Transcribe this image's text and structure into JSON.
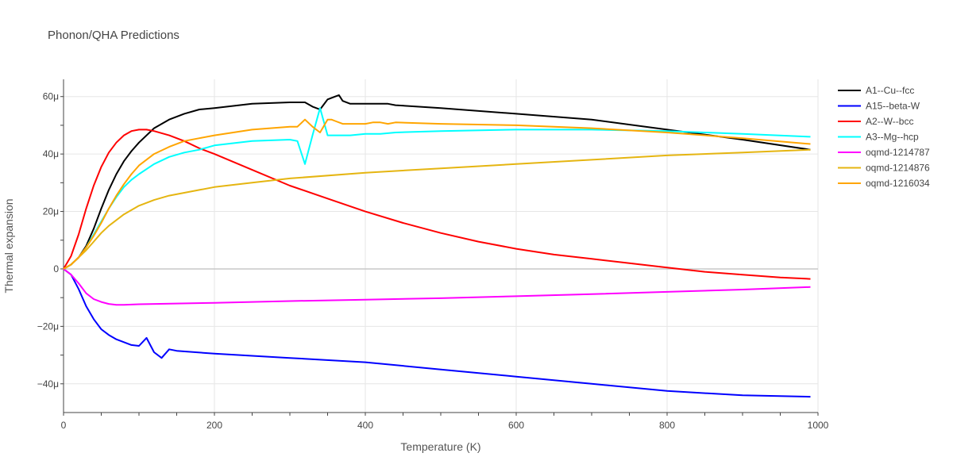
{
  "chart_data": {
    "type": "line",
    "title": "Phonon/QHA Predictions",
    "xlabel": "Temperature (K)",
    "ylabel": "Thermal expansion",
    "xlim": [
      0,
      1000
    ],
    "ylim": [
      -50,
      66
    ],
    "y_unit_suffix": "μ",
    "xticks": [
      0,
      200,
      400,
      600,
      800,
      1000
    ],
    "yticks": [
      -40,
      -20,
      0,
      20,
      40,
      60
    ],
    "ytick_labels": [
      "−40μ",
      "−20μ",
      "0",
      "20μ",
      "40μ",
      "60μ"
    ],
    "grid": true,
    "legend_position": "top-right",
    "series": [
      {
        "name": "A1--Cu--fcc",
        "color": "#000000",
        "x": [
          0,
          10,
          20,
          30,
          40,
          50,
          60,
          70,
          80,
          90,
          100,
          120,
          140,
          160,
          180,
          200,
          250,
          300,
          320,
          330,
          340,
          350,
          360,
          365,
          370,
          380,
          400,
          420,
          430,
          440,
          500,
          600,
          700,
          800,
          900,
          990
        ],
        "y": [
          0,
          1.5,
          4,
          8,
          14,
          21,
          27.5,
          33,
          37.5,
          41,
          44,
          49,
          52,
          54,
          55.5,
          56,
          57.5,
          58,
          58,
          56.5,
          55.5,
          59,
          60,
          60.5,
          58.5,
          57.5,
          57.5,
          57.5,
          57.5,
          57,
          56,
          54,
          52,
          48.5,
          45,
          41.5
        ]
      },
      {
        "name": "A15--beta-W",
        "color": "#0000ff",
        "x": [
          0,
          10,
          20,
          30,
          40,
          50,
          60,
          70,
          80,
          90,
          100,
          110,
          120,
          130,
          140,
          150,
          200,
          300,
          400,
          500,
          600,
          700,
          800,
          900,
          990
        ],
        "y": [
          0,
          -2,
          -7,
          -13,
          -17.5,
          -21,
          -23,
          -24.5,
          -25.5,
          -26.5,
          -26.8,
          -24,
          -29,
          -31,
          -28,
          -28.5,
          -29.5,
          -31,
          -32.5,
          -35,
          -37.5,
          -40,
          -42.5,
          -44,
          -44.5
        ]
      },
      {
        "name": "A2--W--bcc",
        "color": "#ff0000",
        "x": [
          0,
          10,
          20,
          30,
          40,
          50,
          60,
          70,
          80,
          90,
          100,
          110,
          120,
          140,
          160,
          180,
          200,
          250,
          300,
          350,
          400,
          450,
          500,
          550,
          600,
          650,
          700,
          750,
          800,
          850,
          900,
          950,
          990
        ],
        "y": [
          0,
          4.5,
          12,
          21,
          29,
          35.5,
          40.5,
          44,
          46.5,
          48,
          48.5,
          48.5,
          48,
          46.5,
          44.5,
          42,
          40,
          34.5,
          29,
          24.5,
          20,
          16,
          12.5,
          9.5,
          7,
          5,
          3.5,
          2,
          0.5,
          -1,
          -2,
          -3,
          -3.5
        ]
      },
      {
        "name": "A3--Mg--hcp",
        "color": "#00ffff",
        "x": [
          0,
          10,
          20,
          30,
          40,
          50,
          60,
          70,
          80,
          90,
          100,
          120,
          140,
          160,
          180,
          200,
          250,
          300,
          310,
          320,
          330,
          340,
          350,
          360,
          380,
          400,
          420,
          440,
          500,
          600,
          700,
          800,
          900,
          990
        ],
        "y": [
          0,
          1.5,
          4,
          7.5,
          12,
          16.5,
          21,
          25,
          28.5,
          31,
          33,
          36.5,
          39,
          40.5,
          41.5,
          43,
          44.5,
          45,
          44.5,
          36.5,
          46.5,
          56,
          46.5,
          46.5,
          46.5,
          47,
          47,
          47.5,
          48,
          48.5,
          48.5,
          48,
          47,
          46
        ]
      },
      {
        "name": "oqmd-1214787",
        "color": "#ff00ff",
        "x": [
          0,
          10,
          20,
          30,
          40,
          50,
          60,
          70,
          80,
          100,
          200,
          300,
          400,
          500,
          600,
          700,
          800,
          900,
          990
        ],
        "y": [
          0,
          -2,
          -5,
          -8.5,
          -10.5,
          -11.5,
          -12.2,
          -12.5,
          -12.5,
          -12.3,
          -11.8,
          -11.2,
          -10.7,
          -10.2,
          -9.5,
          -8.8,
          -8,
          -7.2,
          -6.3
        ]
      },
      {
        "name": "oqmd-1214876",
        "color": "#e5b511",
        "x": [
          0,
          10,
          20,
          30,
          40,
          50,
          60,
          70,
          80,
          90,
          100,
          120,
          140,
          160,
          180,
          200,
          250,
          300,
          400,
          500,
          600,
          700,
          800,
          900,
          990
        ],
        "y": [
          0,
          1.5,
          4,
          6.5,
          9.5,
          12.5,
          15,
          17,
          19,
          20.5,
          22,
          24,
          25.5,
          26.5,
          27.5,
          28.5,
          30,
          31.5,
          33.5,
          35,
          36.5,
          38,
          39.5,
          40.5,
          41.5
        ]
      },
      {
        "name": "oqmd-1216034",
        "color": "#ffa500",
        "x": [
          0,
          10,
          20,
          30,
          40,
          50,
          60,
          70,
          80,
          90,
          100,
          120,
          140,
          160,
          180,
          200,
          250,
          300,
          310,
          320,
          330,
          340,
          350,
          355,
          360,
          370,
          380,
          390,
          400,
          410,
          420,
          430,
          440,
          500,
          600,
          700,
          800,
          900,
          990
        ],
        "y": [
          0,
          1.5,
          4,
          7.5,
          11.5,
          16,
          21,
          25.5,
          29.5,
          33,
          36,
          40,
          42.5,
          44.5,
          45.5,
          46.5,
          48.5,
          49.5,
          49.5,
          52,
          49.5,
          47.5,
          52,
          52,
          51.5,
          50.5,
          50.5,
          50.5,
          50.5,
          51,
          51,
          50.5,
          51,
          50.5,
          50,
          49,
          47.5,
          45.5,
          43.5
        ]
      }
    ]
  }
}
